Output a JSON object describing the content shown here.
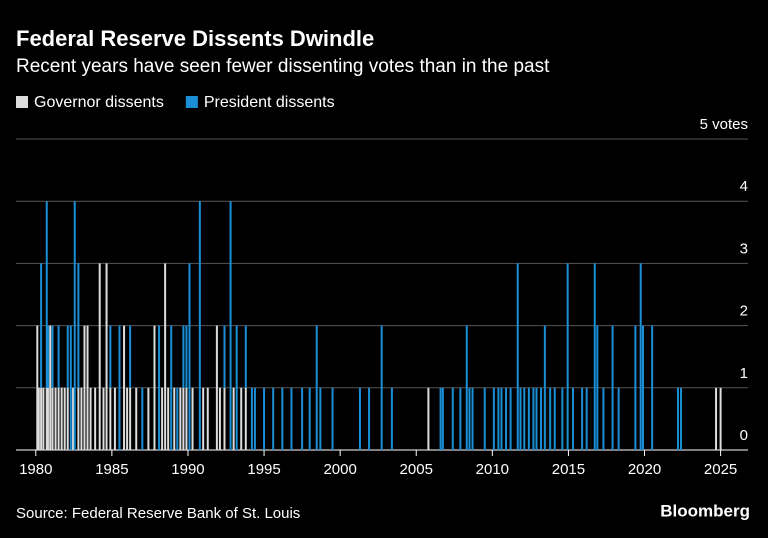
{
  "chart_data": {
    "type": "bar",
    "stacked": true,
    "title": "Federal Reserve Dissents Dwindle",
    "subtitle": "Recent years have seen fewer dissenting votes than in the past",
    "source": "Source: Federal Reserve Bank of St. Louis",
    "brand": "Bloomberg",
    "x": [
      1980.1,
      1980.2,
      1980.35,
      1980.5,
      1980.72,
      1980.8,
      1980.95,
      1981.1,
      1981.3,
      1981.5,
      1981.7,
      1981.9,
      1982.1,
      1982.3,
      1982.45,
      1982.56,
      1982.8,
      1983.0,
      1983.2,
      1983.4,
      1983.6,
      1983.9,
      1984.2,
      1984.45,
      1984.65,
      1984.9,
      1985.2,
      1985.5,
      1985.8,
      1986.0,
      1986.2,
      1986.6,
      1987.0,
      1987.4,
      1987.8,
      1988.1,
      1988.3,
      1988.5,
      1988.7,
      1988.9,
      1989.1,
      1989.3,
      1989.5,
      1989.7,
      1989.9,
      1990.1,
      1990.3,
      1990.78,
      1991.0,
      1991.3,
      1991.9,
      1992.1,
      1992.4,
      1992.8,
      1993.0,
      1993.2,
      1993.5,
      1993.8,
      1994.2,
      1994.4,
      1995.0,
      1995.6,
      1996.2,
      1996.8,
      1997.5,
      1998.0,
      1998.46,
      1998.7,
      1999.5,
      2001.3,
      2001.9,
      2002.73,
      2003.4,
      2005.8,
      2006.6,
      2006.75,
      2007.4,
      2007.9,
      2008.32,
      2008.5,
      2008.7,
      2009.5,
      2010.1,
      2010.4,
      2010.6,
      2010.9,
      2011.2,
      2011.67,
      2011.85,
      2012.1,
      2012.4,
      2012.7,
      2012.9,
      2013.2,
      2013.45,
      2013.8,
      2014.1,
      2014.6,
      2014.95,
      2015.3,
      2015.9,
      2016.2,
      2016.73,
      2016.9,
      2017.3,
      2017.9,
      2018.3,
      2019.4,
      2019.75,
      2019.9,
      2020.5,
      2022.2,
      2022.4,
      2024.7,
      2025.0
    ],
    "series": [
      {
        "name": "Governor dissents",
        "color": "#dcdcdc",
        "values": [
          2,
          1,
          1,
          1,
          1,
          1,
          2,
          1,
          1,
          1,
          1,
          1,
          1,
          0,
          1,
          0,
          1,
          1,
          2,
          2,
          1,
          1,
          3,
          1,
          3,
          1,
          1,
          0,
          2,
          1,
          1,
          1,
          0,
          1,
          2,
          0,
          1,
          3,
          1,
          0,
          1,
          0,
          1,
          1,
          1,
          0,
          1,
          0,
          1,
          1,
          2,
          1,
          1,
          0,
          1,
          0,
          1,
          1,
          0,
          0,
          0,
          0,
          0,
          0,
          0,
          0,
          0,
          0,
          0,
          0,
          0,
          0,
          0,
          1,
          0,
          0,
          0,
          0,
          0,
          0,
          0,
          0,
          0,
          0,
          0,
          0,
          0,
          0,
          0,
          0,
          0,
          0,
          0,
          0,
          0,
          0,
          0,
          0,
          0,
          0,
          0,
          0,
          0,
          0,
          0,
          0,
          0,
          0,
          0,
          0,
          0,
          0,
          0,
          1,
          1
        ]
      },
      {
        "name": "President dissents",
        "color": "#1a8fd6",
        "values": [
          0,
          0,
          2,
          0,
          3,
          1,
          0,
          1,
          0,
          1,
          0,
          0,
          1,
          2,
          0,
          4,
          2,
          0,
          0,
          0,
          0,
          0,
          0,
          0,
          0,
          1,
          0,
          2,
          0,
          0,
          1,
          0,
          1,
          0,
          0,
          2,
          0,
          0,
          0,
          2,
          0,
          1,
          0,
          1,
          1,
          3,
          0,
          4,
          0,
          0,
          0,
          0,
          1,
          4,
          0,
          2,
          0,
          1,
          1,
          1,
          1,
          1,
          1,
          1,
          1,
          1,
          2,
          1,
          1,
          1,
          1,
          2,
          1,
          0,
          1,
          1,
          1,
          1,
          2,
          1,
          1,
          1,
          1,
          1,
          1,
          1,
          1,
          3,
          1,
          1,
          1,
          1,
          1,
          1,
          2,
          1,
          1,
          1,
          3,
          1,
          1,
          1,
          3,
          2,
          1,
          2,
          1,
          2,
          3,
          2,
          2,
          1,
          1,
          0,
          0
        ]
      }
    ],
    "xlim": [
      1978.7,
      2026.8
    ],
    "xticks": [
      1980,
      1985,
      1990,
      1995,
      2000,
      2005,
      2010,
      2015,
      2020,
      2025
    ],
    "ylim": [
      0,
      5
    ],
    "yticks": [
      0,
      1,
      2,
      3,
      4,
      {
        "value": 5,
        "label": "5 votes"
      }
    ],
    "grid": true
  }
}
